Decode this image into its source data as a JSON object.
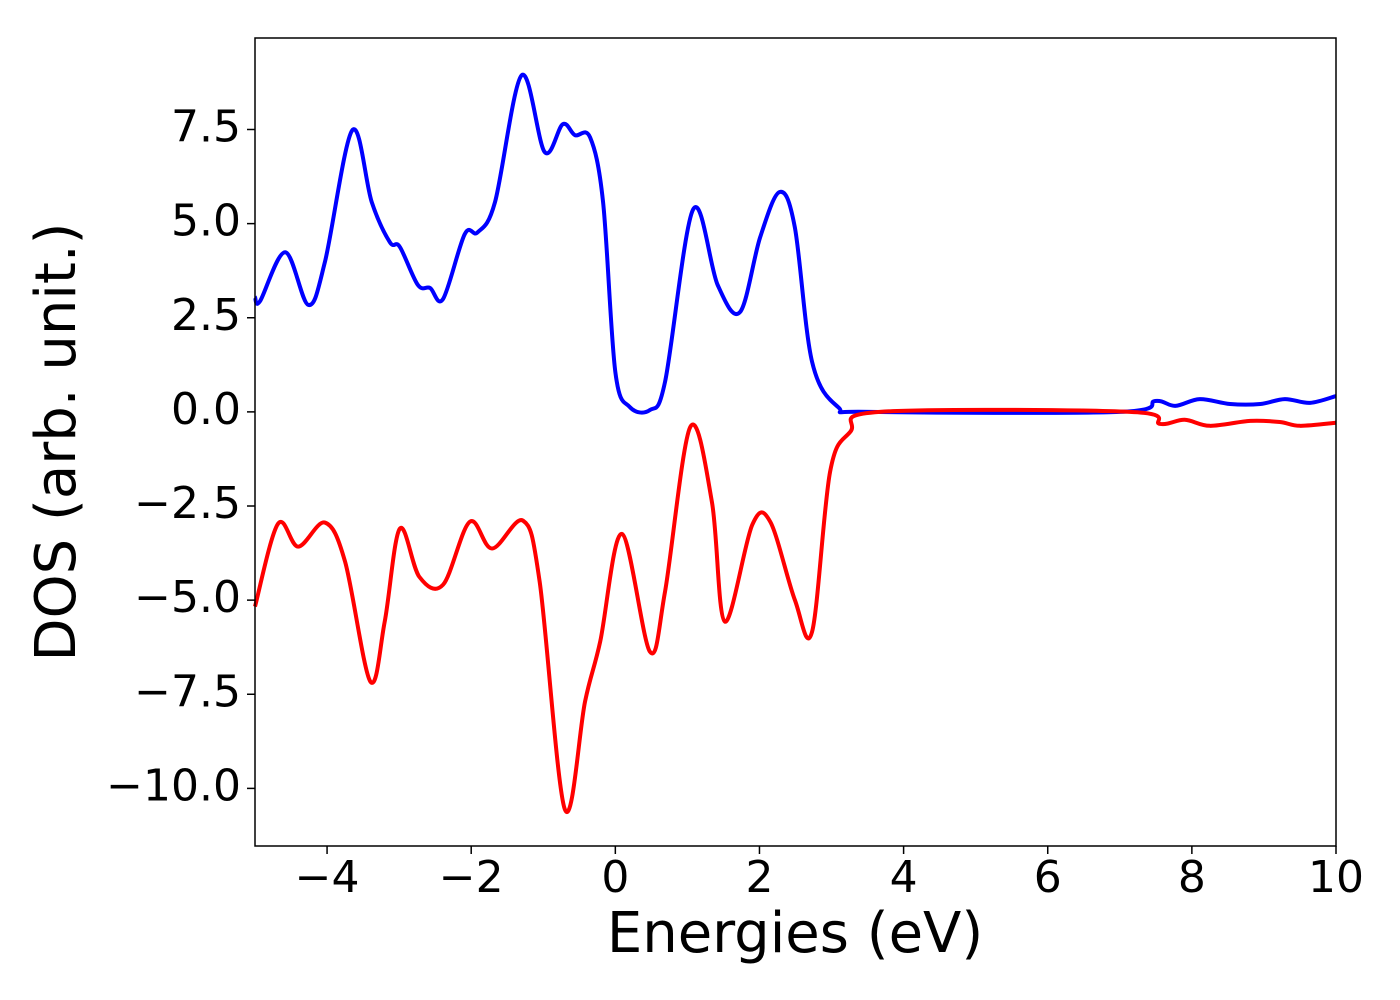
{
  "chart_data": {
    "type": "line",
    "x_label": "Energies (eV)",
    "y_label": "DOS (arb. unit.)",
    "xlim": [
      -5,
      10
    ],
    "ylim": [
      -11.53,
      9.93
    ],
    "xticks": [
      {
        "value": -4,
        "label": "−4"
      },
      {
        "value": -2,
        "label": "−2"
      },
      0,
      2,
      4,
      6,
      8,
      10
    ],
    "yticks": [
      {
        "value": -10,
        "label": "−10.0"
      },
      {
        "value": -7.5,
        "label": "−7.5"
      },
      {
        "value": -5,
        "label": "−5.0"
      },
      {
        "value": -2.5,
        "label": "−2.5"
      },
      {
        "value": 0,
        "label": "0.0"
      },
      2.5,
      {
        "value": 5,
        "label": "5.0"
      },
      7.5
    ],
    "series": [
      {
        "color": "#0000ff",
        "x": [
          -5,
          -4.93,
          -4.58,
          -4.26,
          -4.03,
          -3.65,
          -3.38,
          -3.13,
          -2.99,
          -2.74,
          -2.57,
          -2.39,
          -2.09,
          -1.91,
          -1.67,
          -1.3,
          -0.98,
          -0.73,
          -0.56,
          -0.35,
          -0.17,
          0.0,
          0.2,
          0.48,
          0.69,
          1.08,
          1.42,
          1.73,
          2.01,
          2.28,
          2.49,
          2.73,
          3.09,
          3.53,
          7.0,
          7.49,
          7.77,
          8.11,
          8.53,
          8.95,
          9.29,
          9.64,
          10
        ],
        "values": [
          3.05,
          2.94,
          4.24,
          2.84,
          3.98,
          7.48,
          5.57,
          4.51,
          4.38,
          3.37,
          3.29,
          3.0,
          4.72,
          4.77,
          5.57,
          8.94,
          6.9,
          7.64,
          7.35,
          7.29,
          5.57,
          1.06,
          0.13,
          0.05,
          0.8,
          5.38,
          3.37,
          2.65,
          4.64,
          5.84,
          4.91,
          1.33,
          0.13,
          0,
          0,
          0.29,
          0.16,
          0.34,
          0.21,
          0.21,
          0.34,
          0.24,
          0.42
        ]
      },
      {
        "color": "#ff0000",
        "x": [
          -5,
          -4.68,
          -4.4,
          -4.03,
          -3.75,
          -3.4,
          -3.2,
          -2.99,
          -2.72,
          -2.39,
          -2.02,
          -1.71,
          -1.28,
          -1.05,
          -0.7,
          -0.42,
          -0.21,
          0.09,
          0.48,
          0.69,
          1.04,
          1.34,
          1.52,
          1.9,
          2.15,
          2.49,
          2.73,
          2.98,
          3.26,
          3.67,
          7.14,
          7.56,
          7.9,
          8.25,
          8.81,
          9.22,
          9.5,
          10
        ],
        "values": [
          -5.17,
          -2.97,
          -3.58,
          -2.94,
          -3.98,
          -7.16,
          -5.57,
          -3.1,
          -4.38,
          -4.59,
          -2.92,
          -3.63,
          -2.89,
          -4.51,
          -10.56,
          -7.69,
          -6.1,
          -3.24,
          -6.37,
          -4.77,
          -0.4,
          -2.39,
          -5.57,
          -3.0,
          -2.92,
          -4.99,
          -5.84,
          -1.59,
          -0.53,
          0,
          0,
          -0.32,
          -0.21,
          -0.37,
          -0.24,
          -0.27,
          -0.37,
          -0.29
        ]
      }
    ]
  }
}
